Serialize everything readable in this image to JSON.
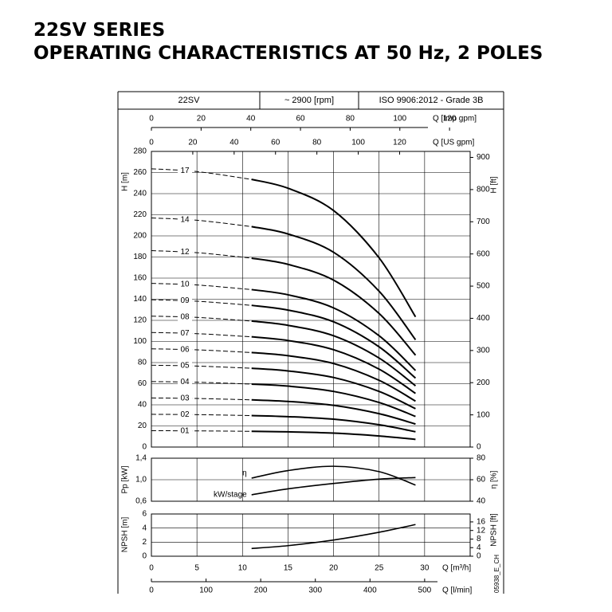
{
  "title": "22SV SERIES",
  "subtitle": "OPERATING CHARACTERISTICS AT 50 Hz, 2 POLES",
  "header_cells": [
    "22SV",
    "~ 2900 [rpm]",
    "ISO 9906:2012 - Grade 3B"
  ],
  "code": "05938_E_CH",
  "chart_data": [
    {
      "type": "line",
      "ylabel": "H [m]",
      "y2label": "H [ft]",
      "x": [
        0,
        5,
        11,
        15,
        20,
        25,
        29
      ],
      "xlim": [
        0,
        35
      ],
      "xticks": [
        0,
        5,
        10,
        15,
        20,
        25,
        30
      ],
      "ylim": [
        0,
        280
      ],
      "yticks": [
        0,
        20,
        40,
        60,
        80,
        100,
        120,
        140,
        160,
        180,
        200,
        220,
        240,
        260,
        280
      ],
      "y2lim": [
        0,
        918.6
      ],
      "y2ticks": [
        0,
        100,
        200,
        300,
        400,
        500,
        600,
        700,
        800,
        900
      ],
      "dashed_xlim": [
        0,
        11
      ],
      "color": "#000000",
      "grid": true,
      "extra_x_axes": [
        {
          "xlabel": "Q [Imp gpm]",
          "xlim": [
            0,
            128.3
          ],
          "xticks": [
            0,
            20,
            40,
            60,
            80,
            100,
            120
          ]
        },
        {
          "xlabel": "Q [US gpm]",
          "xlim": [
            0,
            154.1
          ],
          "xticks": [
            0,
            20,
            40,
            60,
            80,
            100,
            120
          ]
        }
      ],
      "series": [
        {
          "name": "17",
          "values": [
            263.5,
            260.9,
            253.5,
            245.1,
            224,
            179.2,
            123.3
          ]
        },
        {
          "name": "14",
          "values": [
            217,
            214.8,
            208.8,
            201.8,
            184.5,
            147.6,
            101.6
          ]
        },
        {
          "name": "12",
          "values": [
            186,
            184.1,
            178.9,
            173,
            158.1,
            126.5,
            87
          ]
        },
        {
          "name": "10",
          "values": [
            155,
            153.5,
            149.1,
            144.2,
            131.8,
            105.4,
            72.5
          ]
        },
        {
          "name": "09",
          "values": [
            139.5,
            138.1,
            134.2,
            129.7,
            118.6,
            94.9,
            65.3
          ]
        },
        {
          "name": "08",
          "values": [
            124,
            122.8,
            119.3,
            115.3,
            105.4,
            84.3,
            58
          ]
        },
        {
          "name": "07",
          "values": [
            108.5,
            107.4,
            104.4,
            100.9,
            92.2,
            73.8,
            50.8
          ]
        },
        {
          "name": "06",
          "values": [
            93,
            92.1,
            89.5,
            86.5,
            79.1,
            63.2,
            43.5
          ]
        },
        {
          "name": "05",
          "values": [
            77.5,
            76.7,
            74.6,
            72.1,
            65.9,
            52.7,
            36.3
          ]
        },
        {
          "name": "04",
          "values": [
            62,
            61.4,
            59.6,
            57.7,
            52.7,
            42.2,
            29
          ]
        },
        {
          "name": "03",
          "values": [
            46.5,
            46,
            44.7,
            43.2,
            39.5,
            31.6,
            21.8
          ]
        },
        {
          "name": "02",
          "values": [
            31,
            30.7,
            29.8,
            28.8,
            26.4,
            21.1,
            14.5
          ]
        },
        {
          "name": "01",
          "values": [
            15.5,
            15.3,
            14.9,
            14.4,
            13.2,
            10.5,
            7.3
          ]
        }
      ]
    },
    {
      "type": "line",
      "ylabel": "Pp [kW]",
      "y2label": "η [%]",
      "x": [
        11,
        15,
        20,
        25,
        29
      ],
      "xlim": [
        0,
        35
      ],
      "xticks": [
        0,
        5,
        10,
        15,
        20,
        25,
        30
      ],
      "ylim": [
        0.6,
        1.4
      ],
      "yticks": [
        {
          "value": 0.6,
          "label": "0,6"
        },
        {
          "value": 1.0,
          "label": "1,0"
        },
        {
          "value": 1.4,
          "label": "1,4"
        }
      ],
      "y2lim": [
        40,
        80
      ],
      "y2ticks": [
        40,
        60,
        80
      ],
      "color": "#000000",
      "grid": true,
      "series": [
        {
          "name": "η",
          "axis": "y2",
          "values": [
            61.5,
            68.5,
            72.5,
            67.5,
            55
          ]
        },
        {
          "name": "kW/stage",
          "values": [
            0.72,
            0.83,
            0.93,
            1.01,
            1.04
          ]
        }
      ]
    },
    {
      "type": "line",
      "ylabel": "NPSH [m]",
      "y2label": "NPSH [ft]",
      "xlabel": "Q [m³/h]",
      "x": [
        11,
        15,
        20,
        25,
        29
      ],
      "xlim": [
        0,
        35
      ],
      "xticks": [
        0,
        5,
        10,
        15,
        20,
        25,
        30
      ],
      "ylim": [
        0,
        6
      ],
      "yticks": [
        0,
        2,
        4,
        6
      ],
      "y2lim": [
        0,
        19.69
      ],
      "y2ticks": [
        0,
        4,
        8,
        12,
        16
      ],
      "color": "#000000",
      "grid": true,
      "extra_x_axes": [
        {
          "xlabel": "Q [l/min]",
          "xlim": [
            0,
            583.3
          ],
          "xticks": [
            0,
            100,
            200,
            300,
            400,
            500
          ]
        }
      ],
      "series": [
        {
          "values": [
            1.1,
            1.5,
            2.3,
            3.4,
            4.5
          ]
        }
      ]
    }
  ]
}
